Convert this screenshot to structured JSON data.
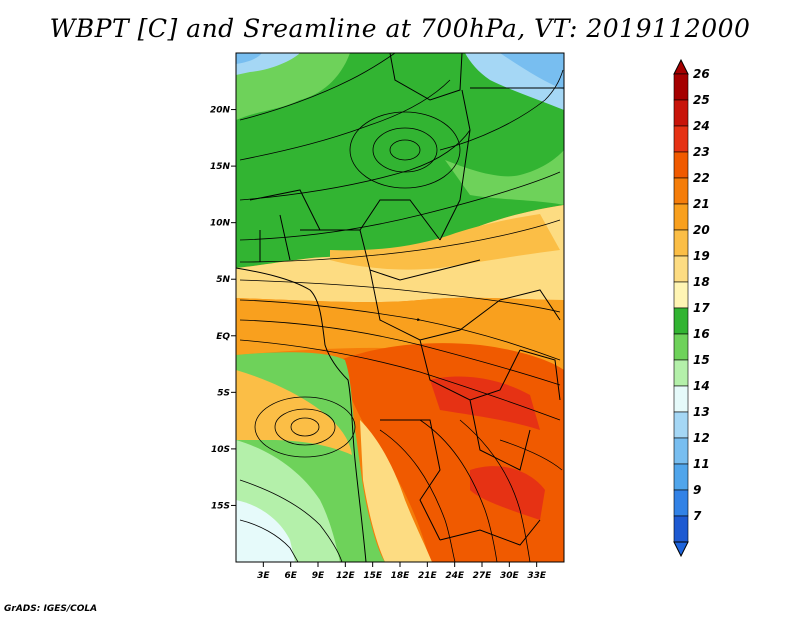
{
  "title": "WBPT [C] and Sreamline at 700hPa, VT: 2019112000",
  "credit": "GrADS: IGES/COLA",
  "map": {
    "lon_range": [
      0,
      36
    ],
    "lat_range": [
      -20,
      25
    ],
    "lat_ticks": [
      {
        "value": 20,
        "label": "20N"
      },
      {
        "value": 15,
        "label": "15N"
      },
      {
        "value": 10,
        "label": "10N"
      },
      {
        "value": 5,
        "label": "5N"
      },
      {
        "value": 0,
        "label": "EQ"
      },
      {
        "value": -5,
        "label": "5S"
      },
      {
        "value": -10,
        "label": "10S"
      },
      {
        "value": -15,
        "label": "15S"
      }
    ],
    "lon_ticks": [
      {
        "value": 3,
        "label": "3E"
      },
      {
        "value": 6,
        "label": "6E"
      },
      {
        "value": 9,
        "label": "9E"
      },
      {
        "value": 12,
        "label": "12E"
      },
      {
        "value": 15,
        "label": "15E"
      },
      {
        "value": 18,
        "label": "18E"
      },
      {
        "value": 21,
        "label": "21E"
      },
      {
        "value": 24,
        "label": "24E"
      },
      {
        "value": 27,
        "label": "27E"
      },
      {
        "value": 30,
        "label": "30E"
      },
      {
        "value": 33,
        "label": "33E"
      }
    ]
  },
  "colorbar": {
    "levels": [
      {
        "label": "26",
        "color": "#a50000"
      },
      {
        "label": "25",
        "color": "#c8140a"
      },
      {
        "label": "24",
        "color": "#e63214"
      },
      {
        "label": "23",
        "color": "#f05a00"
      },
      {
        "label": "22",
        "color": "#f57d0a"
      },
      {
        "label": "21",
        "color": "#f9a01e"
      },
      {
        "label": "20",
        "color": "#fbbe46"
      },
      {
        "label": "19",
        "color": "#fddc82"
      },
      {
        "label": "18",
        "color": "#fff5b4"
      },
      {
        "label": "17",
        "color": "#32b432"
      },
      {
        "label": "16",
        "color": "#6ed25a"
      },
      {
        "label": "15",
        "color": "#b4f0aa"
      },
      {
        "label": "14",
        "color": "#e6fafa"
      },
      {
        "label": "13",
        "color": "#a5d7f5"
      },
      {
        "label": "12",
        "color": "#78bef0"
      },
      {
        "label": "11",
        "color": "#50a5eb"
      },
      {
        "label": "9",
        "color": "#3282e6"
      },
      {
        "label": "7",
        "color": "#1e5ad2"
      }
    ],
    "top_color": "#a50000",
    "bottom_color": "#1e64dc"
  }
}
